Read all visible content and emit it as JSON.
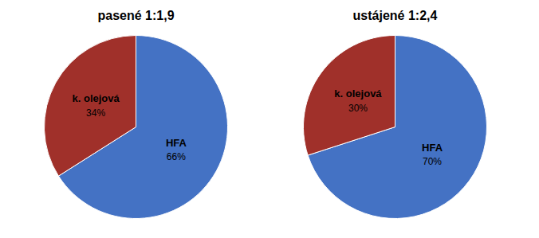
{
  "chart_data": [
    {
      "type": "pie",
      "title": "pasené 1:1,9",
      "categories": [
        "HFA",
        "k. olejová"
      ],
      "values": [
        66,
        34
      ],
      "value_labels": [
        "66%",
        "34%"
      ],
      "colors": [
        "#4472c4",
        "#a0302a"
      ],
      "data_labels": true
    },
    {
      "type": "pie",
      "title": "ustájené 1:2,4",
      "categories": [
        "HFA",
        "k. olejová"
      ],
      "values": [
        70,
        30
      ],
      "value_labels": [
        "70%",
        "30%"
      ],
      "colors": [
        "#4472c4",
        "#a0302a"
      ],
      "data_labels": true
    }
  ]
}
